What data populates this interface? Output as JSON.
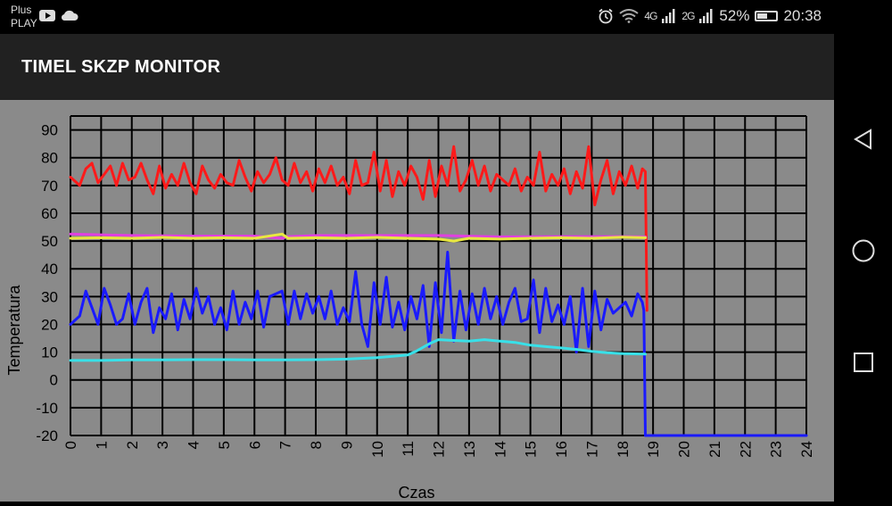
{
  "status_bar": {
    "carrier_line1": "Plus",
    "carrier_line2": "PLAY",
    "network1": "4G",
    "network2": "2G",
    "battery_percent": "52%",
    "battery_level": 0.52,
    "time": "20:38",
    "icons": [
      "youtube-icon",
      "cloud-icon",
      "alarm-icon",
      "wifi-icon",
      "signal-icon",
      "battery-icon"
    ]
  },
  "app_bar": {
    "title": "TIMEL SKZP MONITOR"
  },
  "nav": {
    "icons": [
      "back-icon",
      "home-icon",
      "recents-icon"
    ]
  },
  "chart_data": {
    "type": "line",
    "xlabel": "Czas",
    "ylabel": "Temperatura",
    "xlim": [
      0,
      24
    ],
    "ylim": [
      -20,
      95
    ],
    "xticks": [
      0,
      1,
      2,
      3,
      4,
      5,
      6,
      7,
      8,
      9,
      10,
      11,
      12,
      13,
      14,
      15,
      16,
      17,
      18,
      19,
      20,
      21,
      22,
      23,
      24
    ],
    "yticks": [
      -20,
      -10,
      0,
      10,
      20,
      30,
      40,
      50,
      60,
      70,
      80,
      90
    ],
    "grid": true,
    "series": [
      {
        "color": "#ff1a1a",
        "x": [
          0,
          0.3,
          0.5,
          0.7,
          0.9,
          1.1,
          1.3,
          1.5,
          1.7,
          1.9,
          2.1,
          2.3,
          2.5,
          2.7,
          2.9,
          3.1,
          3.3,
          3.5,
          3.7,
          3.9,
          4.1,
          4.3,
          4.5,
          4.7,
          4.9,
          5.1,
          5.3,
          5.5,
          5.7,
          5.9,
          6.1,
          6.3,
          6.5,
          6.7,
          6.9,
          7.1,
          7.3,
          7.5,
          7.7,
          7.9,
          8.1,
          8.3,
          8.5,
          8.7,
          8.9,
          9.1,
          9.3,
          9.5,
          9.7,
          9.9,
          10.1,
          10.3,
          10.5,
          10.7,
          10.9,
          11.1,
          11.3,
          11.5,
          11.7,
          11.9,
          12.1,
          12.3,
          12.5,
          12.7,
          12.9,
          13.1,
          13.3,
          13.5,
          13.7,
          13.9,
          14.1,
          14.3,
          14.5,
          14.7,
          14.9,
          15.1,
          15.3,
          15.5,
          15.7,
          15.9,
          16.1,
          16.3,
          16.5,
          16.7,
          16.9,
          17.1,
          17.3,
          17.5,
          17.7,
          17.9,
          18.1,
          18.3,
          18.5,
          18.65,
          18.75,
          18.8
        ],
        "values": [
          73,
          70,
          76,
          78,
          71,
          74,
          77,
          70,
          78,
          72,
          73,
          78,
          72,
          67,
          77,
          69,
          74,
          70,
          78,
          71,
          67,
          77,
          72,
          69,
          74,
          71,
          70,
          79,
          73,
          68,
          75,
          71,
          74,
          80,
          72,
          70,
          78,
          71,
          75,
          68,
          76,
          71,
          77,
          70,
          73,
          67,
          79,
          70,
          71,
          82,
          68,
          79,
          66,
          75,
          70,
          77,
          73,
          65,
          79,
          66,
          77,
          70,
          84,
          68,
          72,
          79,
          70,
          77,
          68,
          74,
          72,
          70,
          76,
          68,
          73,
          70,
          82,
          68,
          74,
          70,
          76,
          67,
          75,
          69,
          84,
          63,
          72,
          79,
          67,
          75,
          70,
          77,
          69,
          76,
          75,
          25
        ],
        "series_note": ""
      },
      {
        "color": "#e040e0",
        "x": [
          0,
          2,
          4,
          6,
          6.9,
          7.1,
          8,
          10,
          12,
          14,
          16,
          18,
          18.75
        ],
        "values": [
          52.5,
          52,
          51.8,
          51.8,
          51,
          51.6,
          52,
          52,
          52,
          51.5,
          51.6,
          51.6,
          51.5
        ]
      },
      {
        "color": "#e8e840",
        "x": [
          0,
          1,
          2,
          3,
          4,
          5,
          6,
          6.9,
          7.1,
          8,
          9,
          10,
          11,
          12,
          12.5,
          13,
          14,
          15,
          16,
          17,
          18,
          18.75
        ],
        "values": [
          51,
          51.2,
          51,
          51.3,
          51,
          51.2,
          51,
          52.5,
          51,
          51.2,
          51,
          51.3,
          51,
          50.7,
          50,
          51,
          50.7,
          51,
          51.2,
          51,
          51.4,
          51.2
        ]
      },
      {
        "color": "#1a1aff",
        "x": [
          0,
          0.3,
          0.5,
          0.7,
          0.9,
          1.1,
          1.3,
          1.5,
          1.7,
          1.9,
          2.1,
          2.3,
          2.5,
          2.7,
          2.9,
          3.1,
          3.3,
          3.5,
          3.7,
          3.9,
          4.1,
          4.3,
          4.5,
          4.7,
          4.9,
          5.1,
          5.3,
          5.5,
          5.7,
          5.9,
          6.1,
          6.3,
          6.5,
          6.7,
          6.9,
          7.1,
          7.3,
          7.5,
          7.7,
          7.9,
          8.1,
          8.3,
          8.5,
          8.7,
          8.9,
          9.1,
          9.3,
          9.5,
          9.7,
          9.9,
          10.1,
          10.3,
          10.5,
          10.7,
          10.9,
          11.1,
          11.3,
          11.5,
          11.7,
          11.9,
          12.1,
          12.3,
          12.5,
          12.7,
          12.9,
          13.1,
          13.3,
          13.5,
          13.7,
          13.9,
          14.1,
          14.3,
          14.5,
          14.7,
          14.9,
          15.1,
          15.3,
          15.5,
          15.7,
          15.9,
          16.1,
          16.3,
          16.5,
          16.7,
          16.9,
          17.1,
          17.3,
          17.5,
          17.7,
          17.9,
          18.1,
          18.3,
          18.5,
          18.65,
          18.7,
          18.75,
          18.8,
          19,
          20,
          21,
          22,
          23,
          24
        ],
        "values": [
          20,
          23,
          32,
          26,
          20,
          33,
          27,
          20,
          22,
          31,
          20,
          28,
          33,
          17,
          26,
          22,
          31,
          18,
          29,
          22,
          33,
          24,
          30,
          20,
          26,
          18,
          32,
          20,
          28,
          22,
          32,
          19,
          30,
          31,
          32,
          20,
          32,
          22,
          31,
          24,
          30,
          22,
          32,
          20,
          26,
          21,
          39,
          20,
          12,
          35,
          20,
          37,
          19,
          28,
          18,
          30,
          22,
          34,
          12,
          35,
          17,
          46,
          14,
          32,
          18,
          31,
          20,
          33,
          22,
          30,
          20,
          28,
          33,
          21,
          22,
          36,
          17,
          33,
          21,
          27,
          20,
          30,
          10,
          33,
          12,
          32,
          18,
          29,
          24,
          26,
          28,
          23,
          31,
          28,
          25,
          -20,
          -20,
          -20,
          -20,
          -20,
          -20,
          -20,
          -20
        ]
      },
      {
        "color": "#38e0e8",
        "x": [
          0,
          1,
          2,
          3,
          4,
          5,
          6,
          7,
          8,
          9,
          10,
          10.5,
          11,
          11.3,
          11.7,
          12,
          12.5,
          13,
          13.5,
          14,
          14.5,
          15,
          15.5,
          16,
          16.5,
          17,
          17.5,
          18,
          18.75
        ],
        "values": [
          7,
          7,
          7.2,
          7.2,
          7.3,
          7.3,
          7.2,
          7.2,
          7.3,
          7.5,
          8,
          8.5,
          9,
          10.5,
          13,
          14.5,
          14.2,
          14,
          14.5,
          14,
          13.5,
          12.5,
          12,
          11.5,
          11,
          10.3,
          9.8,
          9.5,
          9.3
        ]
      }
    ]
  }
}
